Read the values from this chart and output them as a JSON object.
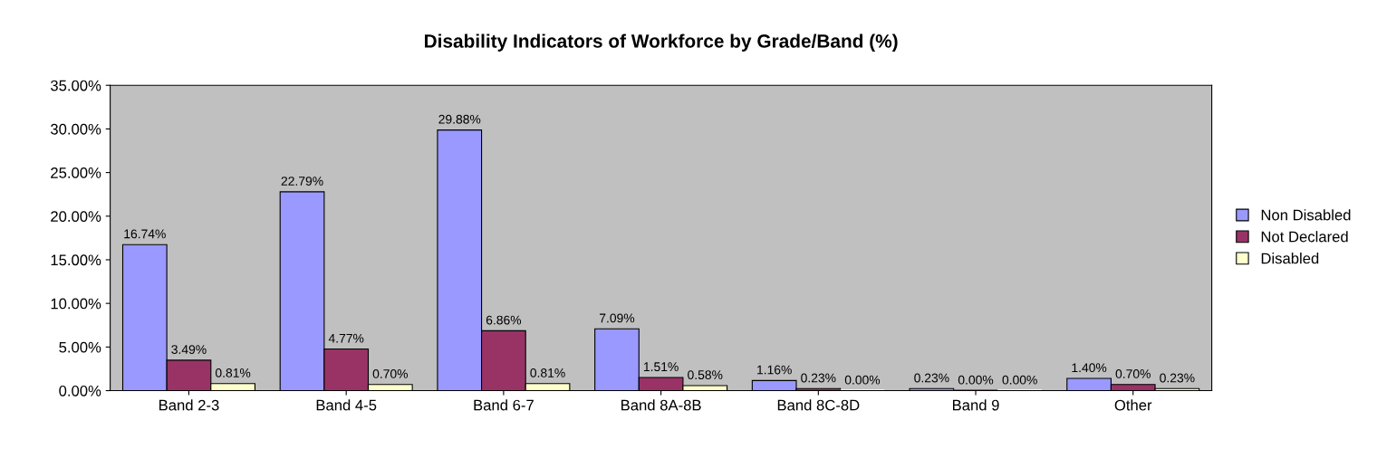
{
  "chart_data": {
    "type": "bar",
    "title": "Disability Indicators of Workforce by Grade/Band (%)",
    "categories": [
      "Band 2-3",
      "Band 4-5",
      "Band 6-7",
      "Band 8A-8B",
      "Band 8C-8D",
      "Band 9",
      "Other"
    ],
    "series": [
      {
        "name": "Non Disabled",
        "color": "#9999ff",
        "values": [
          16.74,
          22.79,
          29.88,
          7.09,
          1.16,
          0.23,
          1.4
        ],
        "value_labels": [
          "16.74%",
          "22.79%",
          "29.88%",
          "7.09%",
          "1.16%",
          "0.23%",
          "1.40%"
        ]
      },
      {
        "name": "Not Declared",
        "color": "#993366",
        "values": [
          3.49,
          4.77,
          6.86,
          1.51,
          0.23,
          0.0,
          0.7
        ],
        "value_labels": [
          "3.49%",
          "4.77%",
          "6.86%",
          "1.51%",
          "0.23%",
          "0.00%",
          "0.70%"
        ]
      },
      {
        "name": "Disabled",
        "color": "#ffffcc",
        "values": [
          0.81,
          0.7,
          0.81,
          0.58,
          0.0,
          0.0,
          0.23
        ],
        "value_labels": [
          "0.81%",
          "0.70%",
          "0.81%",
          "0.58%",
          "0.00%",
          "0.00%",
          "0.23%"
        ]
      }
    ],
    "ylim": [
      0,
      35
    ],
    "yticks": [
      {
        "value": 0,
        "label": "0.00%"
      },
      {
        "value": 5,
        "label": "5.00%"
      },
      {
        "value": 10,
        "label": "10.00%"
      },
      {
        "value": 15,
        "label": "15.00%"
      },
      {
        "value": 20,
        "label": "20.00%"
      },
      {
        "value": 25,
        "label": "25.00%"
      },
      {
        "value": 30,
        "label": "30.00%"
      },
      {
        "value": 35,
        "label": "35.00%"
      }
    ],
    "grid": false,
    "legend": "right"
  }
}
